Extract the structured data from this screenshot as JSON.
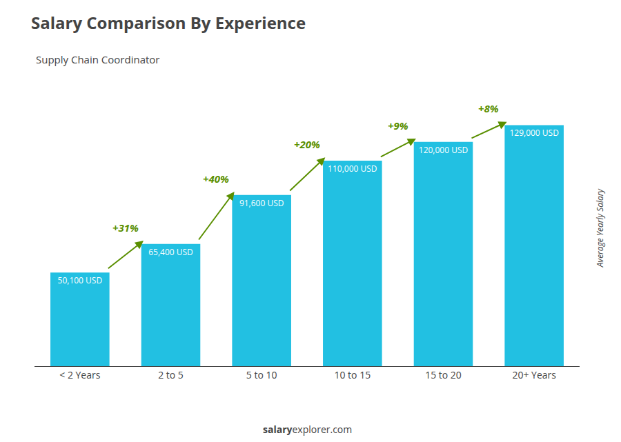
{
  "chart_data": {
    "type": "bar",
    "title": "Salary Comparison By Experience",
    "subtitle": "Supply Chain Coordinator",
    "ylabel": "Average Yearly Salary",
    "categories": [
      "< 2 Years",
      "2 to 5",
      "5 to 10",
      "10 to 15",
      "15 to 20",
      "20+ Years"
    ],
    "values": [
      50100,
      65400,
      91600,
      110000,
      120000,
      129000
    ],
    "value_labels": [
      "50,100 USD",
      "65,400 USD",
      "91,600 USD",
      "110,000 USD",
      "120,000 USD",
      "129,000 USD"
    ],
    "data_labels": true,
    "annotations": [
      "+31%",
      "+40%",
      "+20%",
      "+9%",
      "+8%"
    ],
    "watermark": [
      "salary",
      "explorer.com"
    ],
    "color": "#22c0e2",
    "ylim": [
      0,
      148000
    ],
    "grid": false,
    "tick_labels": "x"
  }
}
